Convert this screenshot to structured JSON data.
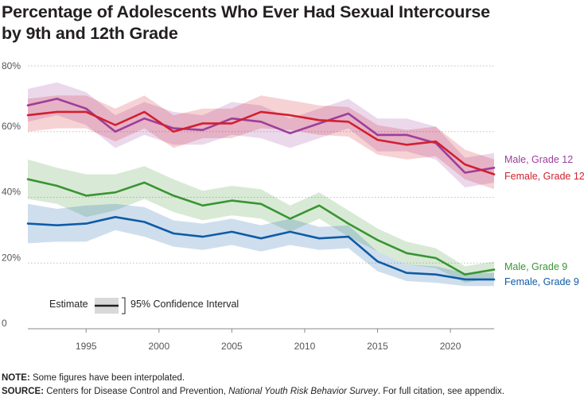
{
  "title_line1": "Percentage of Adolescents Who Ever Had Sexual Intercourse",
  "title_line2": "by 9th and 12th Grade",
  "note_label": "NOTE:",
  "note_text": " Some figures have been interpolated.",
  "source_label": "SOURCE:",
  "source_text1": " Centers for Disease Control and Prevention, ",
  "source_italic": "National Youth Risk Behavior Survey",
  "source_text2": ". For full citation, see appendix.",
  "colors": {
    "male12": "#9c3e9b",
    "female12": "#d1202f",
    "male9": "#3a9433",
    "female9": "#0f5ba7",
    "axis_text": "#555555",
    "grid": "#bfbfbf"
  },
  "chart_data": {
    "type": "line",
    "x": [
      1991,
      1993,
      1995,
      1997,
      1999,
      2001,
      2003,
      2005,
      2007,
      2009,
      2011,
      2013,
      2015,
      2017,
      2019,
      2021,
      2023
    ],
    "xlim": [
      1991,
      2023
    ],
    "ylim": [
      0,
      80
    ],
    "x_ticks": [
      1995,
      2000,
      2005,
      2010,
      2015,
      2020
    ],
    "y_ticks": [
      {
        "value": 0,
        "label": "0"
      },
      {
        "value": 20,
        "label": "20%"
      },
      {
        "value": 40,
        "label": "40%"
      },
      {
        "value": 60,
        "label": "60%"
      },
      {
        "value": 80,
        "label": "80%"
      }
    ],
    "legend": {
      "estimate_label": "Estimate",
      "ci_label": "95% Confidence Interval",
      "position": "bottom-left"
    },
    "series": [
      {
        "name": "Male, Grade 12",
        "color_key": "male12",
        "values": [
          68,
          70,
          67,
          60,
          64,
          61,
          60.5,
          64,
          63,
          59.5,
          62.5,
          65.5,
          59,
          59,
          56.5,
          47.5,
          49
        ],
        "lower": [
          63,
          65,
          62,
          55,
          59,
          56,
          56,
          59,
          58,
          55,
          58,
          61,
          54,
          54,
          51.5,
          43,
          44.5
        ],
        "upper": [
          73,
          75,
          72,
          65,
          69,
          66,
          65,
          69,
          68,
          64,
          67,
          70,
          64,
          64,
          61.5,
          52,
          53.5
        ]
      },
      {
        "name": "Female, Grade 12",
        "color_key": "female12",
        "values": [
          65,
          66,
          66,
          62,
          66,
          60,
          62.5,
          62.5,
          66,
          65,
          63.5,
          63,
          57.5,
          56,
          57,
          50,
          47
        ],
        "lower": [
          60,
          61,
          61,
          57,
          61,
          55,
          58,
          58,
          61,
          60.5,
          59,
          58.5,
          53,
          51.5,
          52.5,
          45.5,
          42.5
        ],
        "upper": [
          70,
          71,
          71,
          67,
          71,
          65,
          67,
          67,
          71,
          69.5,
          68,
          67.5,
          62,
          60.5,
          61.5,
          54.5,
          51.5
        ]
      },
      {
        "name": "Male, Grade 9",
        "color_key": "male9",
        "values": [
          45.5,
          43.5,
          40.5,
          41.5,
          44.5,
          40.5,
          37.5,
          39,
          38,
          33.5,
          37.5,
          32,
          27,
          23,
          21.5,
          16.5,
          18
        ],
        "lower": [
          39.5,
          38,
          34,
          36,
          39.5,
          35.5,
          33,
          34.5,
          33.5,
          29.5,
          33.5,
          28,
          23.5,
          19.5,
          18.5,
          14,
          15.5
        ],
        "upper": [
          51.5,
          49,
          47,
          47,
          49.5,
          45.5,
          42,
          43.5,
          42.5,
          37.5,
          41.5,
          36,
          30.5,
          26.5,
          24.5,
          19,
          20.5
        ]
      },
      {
        "name": "Female, Grade 9",
        "color_key": "female9",
        "values": [
          32,
          31.5,
          32,
          34,
          32.5,
          29,
          28,
          29.5,
          27.5,
          29.5,
          27.5,
          28,
          20.5,
          17,
          16.5,
          15,
          15
        ],
        "lower": [
          26,
          26.5,
          26.5,
          30,
          28,
          25,
          24,
          25.5,
          23.5,
          25.5,
          24,
          24.5,
          17.5,
          14.5,
          14,
          13,
          13
        ],
        "upper": [
          38,
          36.5,
          37.5,
          38,
          37,
          33,
          32,
          33.5,
          31.5,
          33.5,
          31,
          31.5,
          23.5,
          19.5,
          19,
          17,
          17
        ]
      }
    ]
  }
}
